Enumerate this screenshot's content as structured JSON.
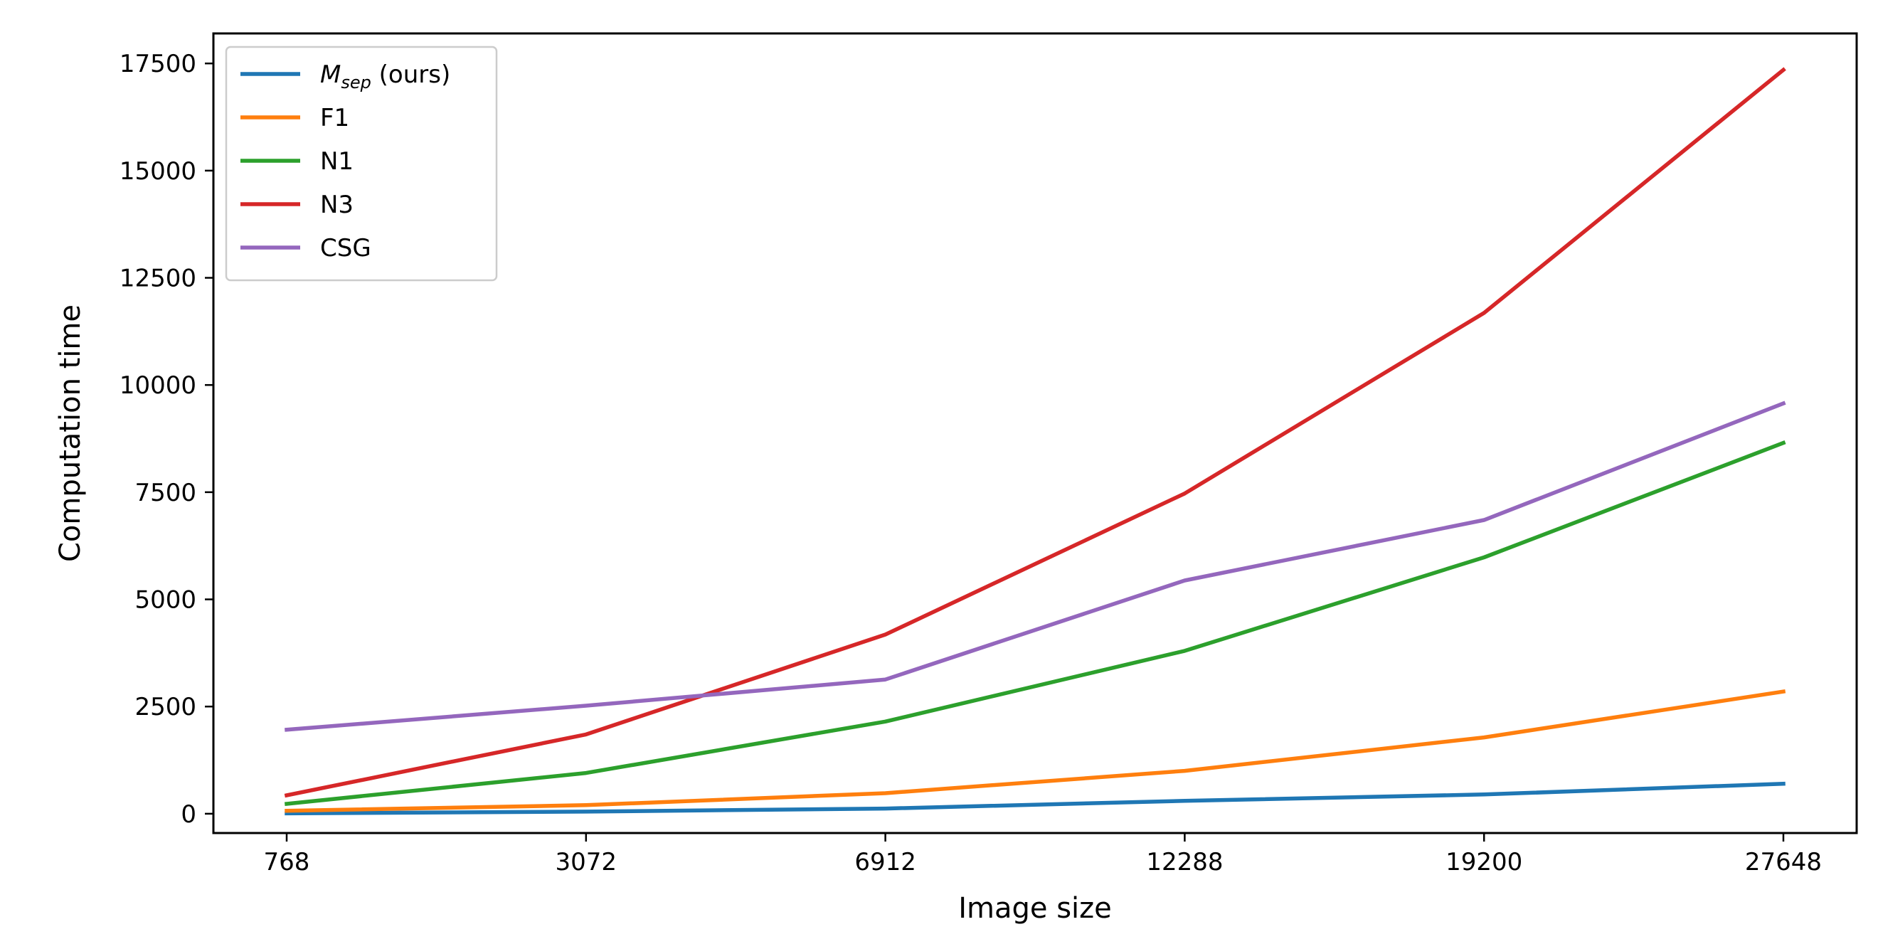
{
  "chart_data": {
    "type": "line",
    "title": "",
    "xlabel": "Image size",
    "ylabel": "Computation time",
    "categories": [
      "768",
      "3072",
      "6912",
      "12288",
      "19200",
      "27648"
    ],
    "ylim": [
      -450,
      18200
    ],
    "yticks": [
      0,
      2500,
      5000,
      7500,
      10000,
      12500,
      15000,
      17500
    ],
    "ytick_labels": [
      "0",
      "2500",
      "5000",
      "7500",
      "10000",
      "12500",
      "15000",
      "17500"
    ],
    "grid": false,
    "legend_position": "top-left",
    "legend": {
      "msep_main": "M",
      "msep_sub": "sep",
      "msep_suffix": " (ours)"
    },
    "series": [
      {
        "name": "M_sep (ours)",
        "color": "#1f77b4",
        "values": [
          10,
          50,
          120,
          300,
          450,
          700
        ]
      },
      {
        "name": "F1",
        "color": "#ff7f0e",
        "values": [
          70,
          200,
          480,
          1000,
          1780,
          2850
        ]
      },
      {
        "name": "N1",
        "color": "#2ca02c",
        "values": [
          230,
          950,
          2150,
          3800,
          5980,
          8650
        ]
      },
      {
        "name": "N3",
        "color": "#d62728",
        "values": [
          430,
          1850,
          4180,
          7470,
          11680,
          17350
        ]
      },
      {
        "name": "CSG",
        "color": "#9467bd",
        "values": [
          1960,
          2520,
          3130,
          5440,
          6850,
          9570
        ]
      }
    ]
  }
}
